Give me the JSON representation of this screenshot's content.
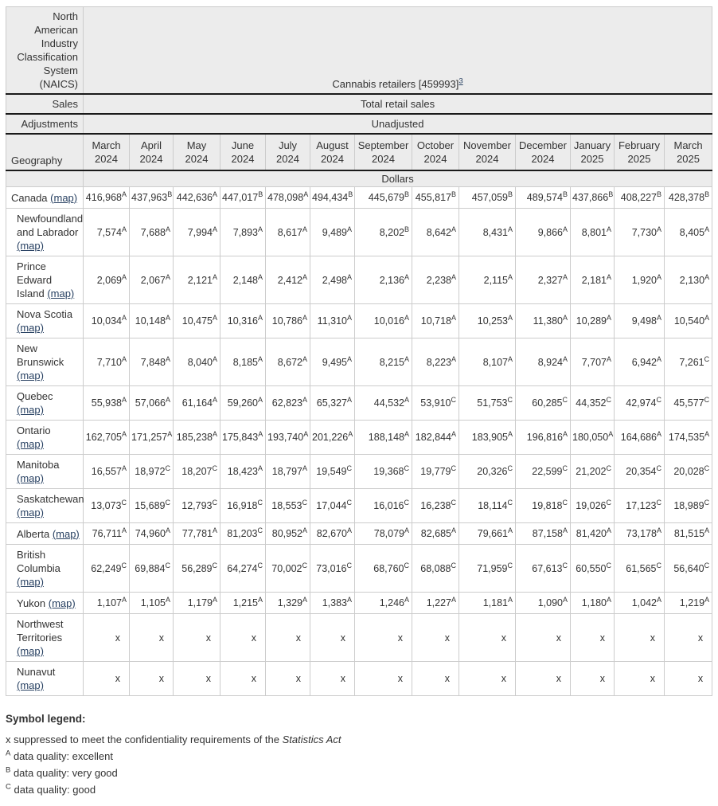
{
  "colors": {
    "header_bg": "#ececec",
    "rule_dark": "#1a1a1a",
    "border_light": "#cccccc",
    "link": "#284162",
    "text": "#333333"
  },
  "table": {
    "naics_label": "North American Industry Classification System (NAICS)",
    "naics_value": "Cannabis retailers [459993]",
    "naics_footnote": "3",
    "sales_label": "Sales",
    "sales_value": "Total retail sales",
    "adjustments_label": "Adjustments",
    "adjustments_value": "Unadjusted",
    "geography_label": "Geography",
    "units": "Dollars",
    "months": [
      "March 2024",
      "April 2024",
      "May 2024",
      "June 2024",
      "July 2024",
      "August 2024",
      "September 2024",
      "October 2024",
      "November 2024",
      "December 2024",
      "January 2025",
      "February 2025",
      "March 2025"
    ],
    "map_label": "(map)",
    "rows": [
      {
        "name": "Canada",
        "indent": false,
        "cells": [
          [
            "416,968",
            "A"
          ],
          [
            "437,963",
            "B"
          ],
          [
            "442,636",
            "A"
          ],
          [
            "447,017",
            "B"
          ],
          [
            "478,098",
            "A"
          ],
          [
            "494,434",
            "B"
          ],
          [
            "445,679",
            "B"
          ],
          [
            "455,817",
            "B"
          ],
          [
            "457,059",
            "B"
          ],
          [
            "489,574",
            "B"
          ],
          [
            "437,866",
            "B"
          ],
          [
            "408,227",
            "B"
          ],
          [
            "428,378",
            "B"
          ]
        ]
      },
      {
        "name": "Newfoundland and Labrador",
        "indent": true,
        "cells": [
          [
            "7,574",
            "A"
          ],
          [
            "7,688",
            "A"
          ],
          [
            "7,994",
            "A"
          ],
          [
            "7,893",
            "A"
          ],
          [
            "8,617",
            "A"
          ],
          [
            "9,489",
            "A"
          ],
          [
            "8,202",
            "B"
          ],
          [
            "8,642",
            "A"
          ],
          [
            "8,431",
            "A"
          ],
          [
            "9,866",
            "A"
          ],
          [
            "8,801",
            "A"
          ],
          [
            "7,730",
            "A"
          ],
          [
            "8,405",
            "A"
          ]
        ]
      },
      {
        "name": "Prince Edward Island",
        "indent": true,
        "cells": [
          [
            "2,069",
            "A"
          ],
          [
            "2,067",
            "A"
          ],
          [
            "2,121",
            "A"
          ],
          [
            "2,148",
            "A"
          ],
          [
            "2,412",
            "A"
          ],
          [
            "2,498",
            "A"
          ],
          [
            "2,136",
            "A"
          ],
          [
            "2,238",
            "A"
          ],
          [
            "2,115",
            "A"
          ],
          [
            "2,327",
            "A"
          ],
          [
            "2,181",
            "A"
          ],
          [
            "1,920",
            "A"
          ],
          [
            "2,130",
            "A"
          ]
        ]
      },
      {
        "name": "Nova Scotia",
        "indent": true,
        "cells": [
          [
            "10,034",
            "A"
          ],
          [
            "10,148",
            "A"
          ],
          [
            "10,475",
            "A"
          ],
          [
            "10,316",
            "A"
          ],
          [
            "10,786",
            "A"
          ],
          [
            "11,310",
            "A"
          ],
          [
            "10,016",
            "A"
          ],
          [
            "10,718",
            "A"
          ],
          [
            "10,253",
            "A"
          ],
          [
            "11,380",
            "A"
          ],
          [
            "10,289",
            "A"
          ],
          [
            "9,498",
            "A"
          ],
          [
            "10,540",
            "A"
          ]
        ]
      },
      {
        "name": "New Brunswick",
        "indent": true,
        "cells": [
          [
            "7,710",
            "A"
          ],
          [
            "7,848",
            "A"
          ],
          [
            "8,040",
            "A"
          ],
          [
            "8,185",
            "A"
          ],
          [
            "8,672",
            "A"
          ],
          [
            "9,495",
            "A"
          ],
          [
            "8,215",
            "A"
          ],
          [
            "8,223",
            "A"
          ],
          [
            "8,107",
            "A"
          ],
          [
            "8,924",
            "A"
          ],
          [
            "7,707",
            "A"
          ],
          [
            "6,942",
            "A"
          ],
          [
            "7,261",
            "C"
          ]
        ]
      },
      {
        "name": "Quebec",
        "indent": true,
        "cells": [
          [
            "55,938",
            "A"
          ],
          [
            "57,066",
            "A"
          ],
          [
            "61,164",
            "A"
          ],
          [
            "59,260",
            "A"
          ],
          [
            "62,823",
            "A"
          ],
          [
            "65,327",
            "A"
          ],
          [
            "44,532",
            "A"
          ],
          [
            "53,910",
            "C"
          ],
          [
            "51,753",
            "C"
          ],
          [
            "60,285",
            "C"
          ],
          [
            "44,352",
            "C"
          ],
          [
            "42,974",
            "C"
          ],
          [
            "45,577",
            "C"
          ]
        ]
      },
      {
        "name": "Ontario",
        "indent": true,
        "cells": [
          [
            "162,705",
            "A"
          ],
          [
            "171,257",
            "A"
          ],
          [
            "185,238",
            "A"
          ],
          [
            "175,843",
            "A"
          ],
          [
            "193,740",
            "A"
          ],
          [
            "201,226",
            "A"
          ],
          [
            "188,148",
            "A"
          ],
          [
            "182,844",
            "A"
          ],
          [
            "183,905",
            "A"
          ],
          [
            "196,816",
            "A"
          ],
          [
            "180,050",
            "A"
          ],
          [
            "164,686",
            "A"
          ],
          [
            "174,535",
            "A"
          ]
        ]
      },
      {
        "name": "Manitoba",
        "indent": true,
        "cells": [
          [
            "16,557",
            "A"
          ],
          [
            "18,972",
            "C"
          ],
          [
            "18,207",
            "C"
          ],
          [
            "18,423",
            "A"
          ],
          [
            "18,797",
            "A"
          ],
          [
            "19,549",
            "C"
          ],
          [
            "19,368",
            "C"
          ],
          [
            "19,779",
            "C"
          ],
          [
            "20,326",
            "C"
          ],
          [
            "22,599",
            "C"
          ],
          [
            "21,202",
            "C"
          ],
          [
            "20,354",
            "C"
          ],
          [
            "20,028",
            "C"
          ]
        ]
      },
      {
        "name": "Saskatchewan",
        "indent": true,
        "cells": [
          [
            "13,073",
            "C"
          ],
          [
            "15,689",
            "C"
          ],
          [
            "12,793",
            "C"
          ],
          [
            "16,918",
            "C"
          ],
          [
            "18,553",
            "C"
          ],
          [
            "17,044",
            "C"
          ],
          [
            "16,016",
            "C"
          ],
          [
            "16,238",
            "C"
          ],
          [
            "18,114",
            "C"
          ],
          [
            "19,818",
            "C"
          ],
          [
            "19,026",
            "C"
          ],
          [
            "17,123",
            "C"
          ],
          [
            "18,989",
            "C"
          ]
        ]
      },
      {
        "name": "Alberta",
        "indent": true,
        "cells": [
          [
            "76,711",
            "A"
          ],
          [
            "74,960",
            "A"
          ],
          [
            "77,781",
            "A"
          ],
          [
            "81,203",
            "C"
          ],
          [
            "80,952",
            "A"
          ],
          [
            "82,670",
            "A"
          ],
          [
            "78,079",
            "A"
          ],
          [
            "82,685",
            "A"
          ],
          [
            "79,661",
            "A"
          ],
          [
            "87,158",
            "A"
          ],
          [
            "81,420",
            "A"
          ],
          [
            "73,178",
            "A"
          ],
          [
            "81,515",
            "A"
          ]
        ]
      },
      {
        "name": "British Columbia",
        "indent": true,
        "cells": [
          [
            "62,249",
            "C"
          ],
          [
            "69,884",
            "C"
          ],
          [
            "56,289",
            "C"
          ],
          [
            "64,274",
            "C"
          ],
          [
            "70,002",
            "C"
          ],
          [
            "73,016",
            "C"
          ],
          [
            "68,760",
            "C"
          ],
          [
            "68,088",
            "C"
          ],
          [
            "71,959",
            "C"
          ],
          [
            "67,613",
            "C"
          ],
          [
            "60,550",
            "C"
          ],
          [
            "61,565",
            "C"
          ],
          [
            "56,640",
            "C"
          ]
        ]
      },
      {
        "name": "Yukon",
        "indent": true,
        "cells": [
          [
            "1,107",
            "A"
          ],
          [
            "1,105",
            "A"
          ],
          [
            "1,179",
            "A"
          ],
          [
            "1,215",
            "A"
          ],
          [
            "1,329",
            "A"
          ],
          [
            "1,383",
            "A"
          ],
          [
            "1,246",
            "A"
          ],
          [
            "1,227",
            "A"
          ],
          [
            "1,181",
            "A"
          ],
          [
            "1,090",
            "A"
          ],
          [
            "1,180",
            "A"
          ],
          [
            "1,042",
            "A"
          ],
          [
            "1,219",
            "A"
          ]
        ]
      },
      {
        "name": "Northwest Territories",
        "indent": true,
        "cells": [
          [
            "x",
            ""
          ],
          [
            "x",
            ""
          ],
          [
            "x",
            ""
          ],
          [
            "x",
            ""
          ],
          [
            "x",
            ""
          ],
          [
            "x",
            ""
          ],
          [
            "x",
            ""
          ],
          [
            "x",
            ""
          ],
          [
            "x",
            ""
          ],
          [
            "x",
            ""
          ],
          [
            "x",
            ""
          ],
          [
            "x",
            ""
          ],
          [
            "x",
            ""
          ]
        ]
      },
      {
        "name": "Nunavut",
        "indent": true,
        "cells": [
          [
            "x",
            ""
          ],
          [
            "x",
            ""
          ],
          [
            "x",
            ""
          ],
          [
            "x",
            ""
          ],
          [
            "x",
            ""
          ],
          [
            "x",
            ""
          ],
          [
            "x",
            ""
          ],
          [
            "x",
            ""
          ],
          [
            "x",
            ""
          ],
          [
            "x",
            ""
          ],
          [
            "x",
            ""
          ],
          [
            "x",
            ""
          ],
          [
            "x",
            ""
          ]
        ]
      }
    ]
  },
  "legend": {
    "title": "Symbol legend:",
    "items": [
      {
        "symbol": "x",
        "sup": false,
        "text": "suppressed to meet the confidentiality requirements of the ",
        "italic": "Statistics Act"
      },
      {
        "symbol": "A",
        "sup": true,
        "text": "data quality: excellent",
        "italic": ""
      },
      {
        "symbol": "B",
        "sup": true,
        "text": "data quality: very good",
        "italic": ""
      },
      {
        "symbol": "C",
        "sup": true,
        "text": "data quality: good",
        "italic": ""
      }
    ]
  }
}
